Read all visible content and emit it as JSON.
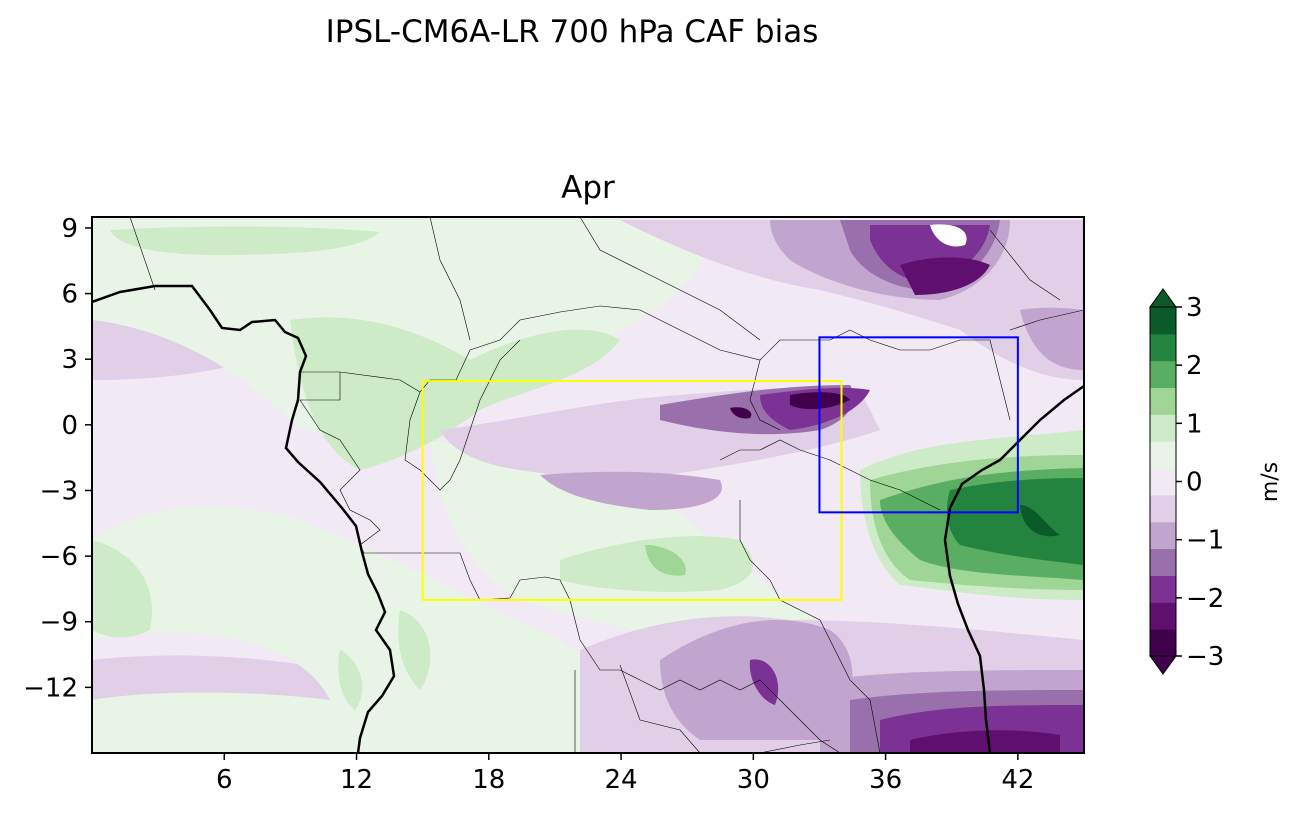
{
  "title": "IPSL-CM6A-LR 700 hPa CAF bias",
  "panel_title": "Apr",
  "map": {
    "lon_range": [
      0,
      45
    ],
    "lat_range": [
      -15,
      9.5
    ],
    "x_ticks": [
      "6",
      "12",
      "18",
      "24",
      "30",
      "36",
      "42"
    ],
    "y_ticks": [
      "9",
      "6",
      "3",
      "0",
      "−3",
      "−6",
      "−9",
      "−12"
    ],
    "boxes": [
      {
        "name": "yellow-region",
        "lon": [
          15,
          34
        ],
        "lat": [
          -8,
          2
        ],
        "color": "#ffff00"
      },
      {
        "name": "blue-region",
        "lon": [
          33,
          42
        ],
        "lat": [
          -4,
          4
        ],
        "color": "#0000ff"
      }
    ]
  },
  "colorbar": {
    "label": "m/s",
    "ticks": [
      "3",
      "2",
      "1",
      "0",
      "−1",
      "−2",
      "−3"
    ],
    "levels": [
      -3,
      -2.5,
      -2,
      -1.5,
      -1,
      -0.5,
      0,
      0.5,
      1,
      1.5,
      2,
      2.5,
      3
    ],
    "colors": [
      "#40004b",
      "#5f0f6d",
      "#7b3294",
      "#9970ab",
      "#c2a5cf",
      "#e0cfe6",
      "#f1e9f3",
      "#e8f4e5",
      "#cdebc7",
      "#9fd595",
      "#5aae61",
      "#23843f",
      "#0b5a2a"
    ]
  }
}
